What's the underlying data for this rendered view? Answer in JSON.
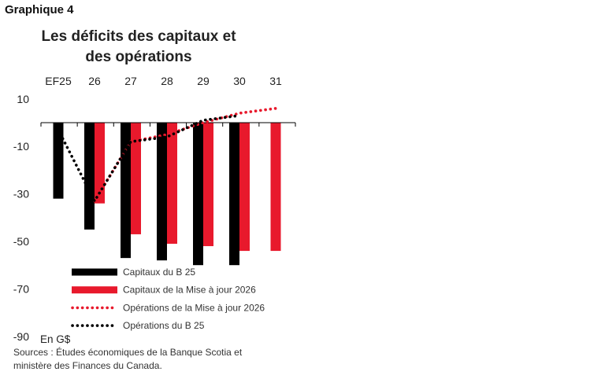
{
  "heading": "Graphique 4",
  "title_lines": [
    "Les déficits des capitaux et",
    "des opérations"
  ],
  "unit_label": "En G$",
  "source_lines": [
    "Sources : Études économiques de la Banque Scotia et",
    "ministère des Finances du Canada."
  ],
  "colors": {
    "black": "#000000",
    "red": "#e8192c"
  },
  "chart_data": {
    "type": "bar",
    "categories": [
      "EF25",
      "26",
      "27",
      "28",
      "29",
      "30",
      "31"
    ],
    "ylim": [
      -90,
      10
    ],
    "yticks": [
      10,
      -10,
      -30,
      -50,
      -70,
      -90
    ],
    "series": [
      {
        "name": "Capitaux du B 25",
        "kind": "bar",
        "color": "#000000",
        "values": [
          -32,
          -45,
          -57,
          -58,
          -60,
          -60,
          null
        ]
      },
      {
        "name": "Capitaux de la Mise à jour 2026",
        "kind": "bar",
        "color": "#e8192c",
        "values": [
          null,
          -34,
          -47,
          -51,
          -52,
          -54,
          -54
        ]
      },
      {
        "name": "Opérations de la Mise à jour 2026",
        "kind": "dotted-line",
        "color": "#e8192c",
        "values": [
          null,
          -33,
          -8,
          -5,
          0,
          4,
          6
        ]
      },
      {
        "name": "Opérations du B 25",
        "kind": "dotted-line",
        "color": "#000000",
        "values": [
          -3,
          -33,
          -8,
          -6,
          1,
          3,
          null
        ]
      }
    ]
  }
}
